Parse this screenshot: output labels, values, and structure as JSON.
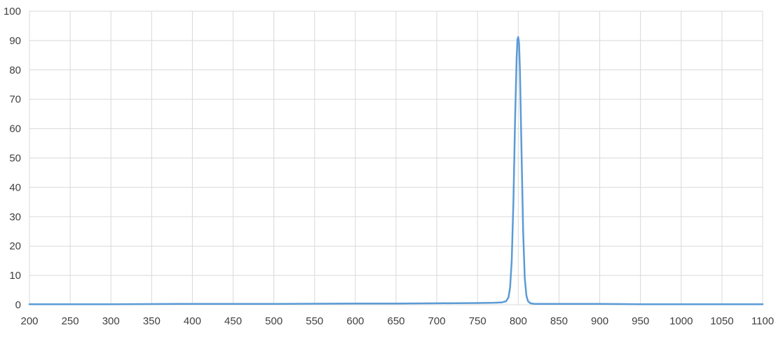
{
  "chart_data": {
    "type": "line",
    "title": "",
    "xlabel": "",
    "ylabel": "",
    "xlim": [
      200,
      1100
    ],
    "ylim": [
      0,
      100
    ],
    "x_ticks": [
      200,
      250,
      300,
      350,
      400,
      450,
      500,
      550,
      600,
      650,
      700,
      750,
      800,
      850,
      900,
      950,
      1000,
      1050,
      1100
    ],
    "y_ticks": [
      0,
      10,
      20,
      30,
      40,
      50,
      60,
      70,
      80,
      90,
      100
    ],
    "grid": true,
    "legend": "none",
    "colors": {
      "series": "#5b9bd5",
      "grid": "#d9d9d9",
      "axis_text": "#404040"
    },
    "series": [
      {
        "x": [
          200,
          300,
          400,
          500,
          600,
          650,
          700,
          750,
          770,
          780,
          785,
          788,
          790,
          792,
          794,
          796,
          798,
          799,
          800,
          801,
          802,
          804,
          806,
          808,
          810,
          812,
          815,
          820,
          850,
          900,
          950,
          1000,
          1050,
          1100
        ],
        "y": [
          0.2,
          0.2,
          0.3,
          0.3,
          0.4,
          0.4,
          0.5,
          0.6,
          0.7,
          0.8,
          1.2,
          2.5,
          6,
          15,
          35,
          62,
          84,
          90.5,
          91.2,
          89,
          80,
          52,
          25,
          9,
          3,
          1.2,
          0.5,
          0.3,
          0.3,
          0.3,
          0.2,
          0.2,
          0.2,
          0.2
        ]
      }
    ]
  }
}
